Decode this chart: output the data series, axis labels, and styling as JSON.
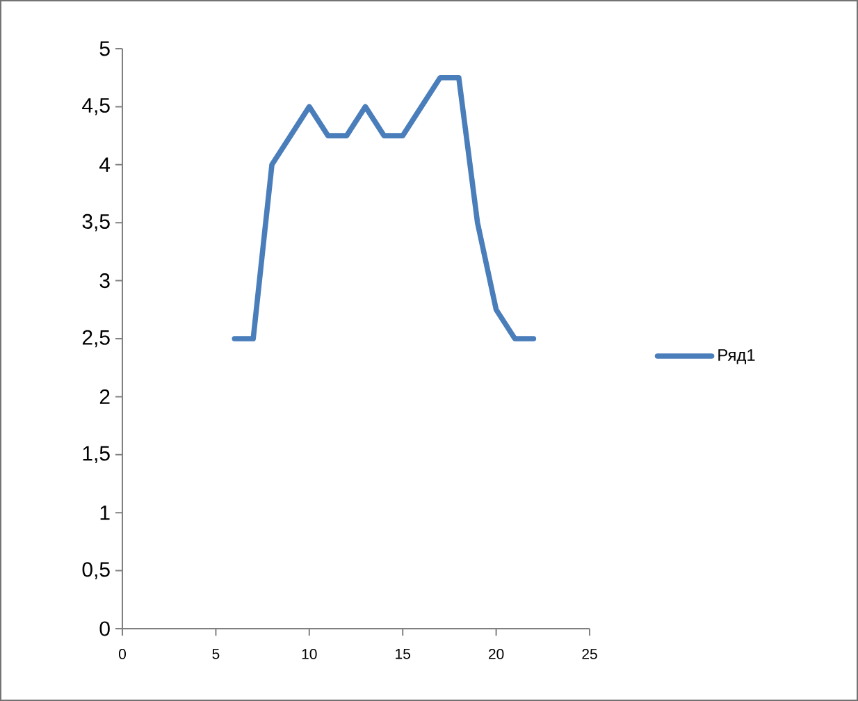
{
  "chart_data": {
    "type": "line",
    "x": [
      6,
      7,
      8,
      9,
      10,
      11,
      12,
      13,
      14,
      15,
      16,
      17,
      18,
      19,
      20,
      21,
      22
    ],
    "series": [
      {
        "name": "Ряд1",
        "color": "#4a7ebb",
        "values": [
          2.5,
          2.5,
          4,
          4.25,
          4.5,
          4.25,
          4.25,
          4.5,
          4.25,
          4.25,
          4.5,
          4.75,
          4.75,
          3.5,
          2.75,
          2.5,
          2.5
        ]
      }
    ],
    "xlim": [
      0,
      25
    ],
    "xticks": [
      0,
      5,
      10,
      15,
      20,
      25
    ],
    "ylim": [
      0,
      5
    ],
    "yticks": [
      0,
      {
        "value": 0.5,
        "label": "0,5"
      },
      1,
      {
        "value": 1.5,
        "label": "1,5"
      },
      2,
      {
        "value": 2.5,
        "label": "2,5"
      },
      3,
      {
        "value": 3.5,
        "label": "3,5"
      },
      4,
      {
        "value": 4.5,
        "label": "4,5"
      },
      5
    ],
    "grid": false,
    "legend": "right",
    "marker": "none",
    "line_style": "solid"
  }
}
